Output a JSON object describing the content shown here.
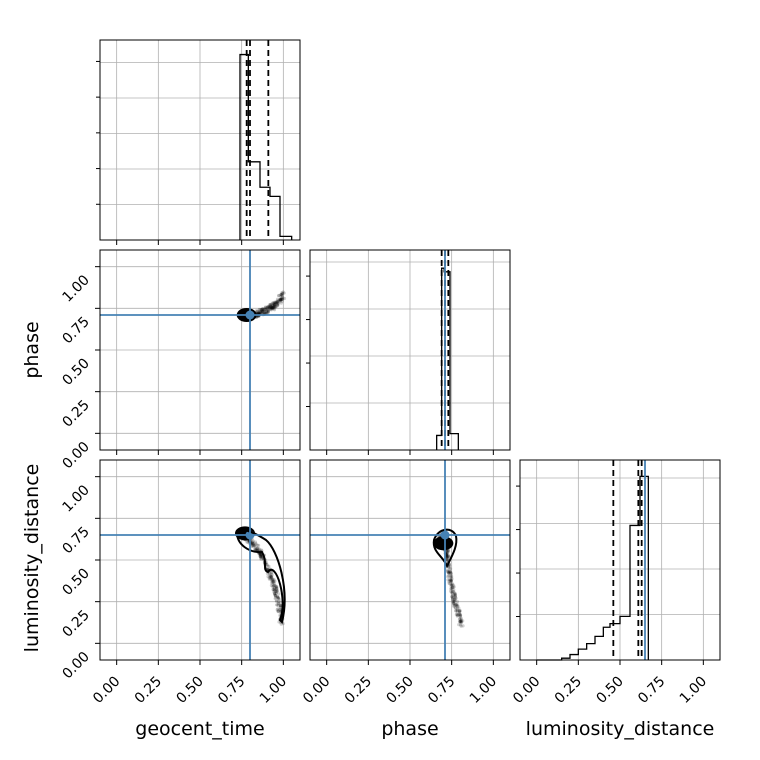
{
  "figure": {
    "type": "corner_plot",
    "parameters": [
      "geocent_time",
      "phase",
      "luminosity_distance"
    ],
    "tick_labels": [
      "0.00",
      "0.25",
      "0.50",
      "0.75",
      "1.00"
    ],
    "axis_range": [
      -0.1,
      1.1
    ],
    "truths": {
      "geocent_time": 0.8,
      "phase": 0.71,
      "luminosity_distance": 0.65
    },
    "truth_color": "#4682b4",
    "grid": true
  },
  "chart_data": [
    {
      "type": "histogram",
      "panel": "geocent_time",
      "xlabel": "geocent_time",
      "bins": [
        {
          "x0": 0.74,
          "x1": 0.79,
          "count": 1.02
        },
        {
          "x0": 0.79,
          "x1": 0.86,
          "count": 0.43
        },
        {
          "x0": 0.86,
          "x1": 0.92,
          "count": 0.29
        },
        {
          "x0": 0.92,
          "x1": 0.98,
          "count": 0.24
        },
        {
          "x0": 0.98,
          "x1": 1.05,
          "count": 0.02
        }
      ],
      "quantiles": [
        0.78,
        0.8,
        0.91
      ]
    },
    {
      "type": "scatter",
      "panel": "phase_vs_geocent_time",
      "x": [
        0.75,
        0.8,
        0.85,
        0.9,
        0.95,
        1.0
      ],
      "y": [
        0.71,
        0.71,
        0.72,
        0.74,
        0.77,
        0.83
      ],
      "truth": [
        0.8,
        0.71
      ]
    },
    {
      "type": "histogram",
      "panel": "phase",
      "bins": [
        {
          "x0": 0.66,
          "x1": 0.69,
          "count": 0.08
        },
        {
          "x0": 0.69,
          "x1": 0.705,
          "count": 1.0
        },
        {
          "x0": 0.705,
          "x1": 0.74,
          "count": 0.98
        },
        {
          "x0": 0.74,
          "x1": 0.79,
          "count": 0.09
        }
      ],
      "quantiles": [
        0.69,
        0.71,
        0.73
      ]
    },
    {
      "type": "scatter",
      "panel": "luminosity_distance_vs_geocent_time",
      "ylabel": "luminosity_distance",
      "x": [
        0.74,
        0.8,
        0.86,
        0.92,
        0.96,
        0.99
      ],
      "y": [
        0.66,
        0.62,
        0.55,
        0.42,
        0.3,
        0.12
      ],
      "truth": [
        0.8,
        0.65
      ]
    },
    {
      "type": "scatter",
      "panel": "luminosity_distance_vs_phase",
      "xlabel": "phase",
      "x": [
        0.67,
        0.7,
        0.72,
        0.74,
        0.77,
        0.81
      ],
      "y": [
        0.6,
        0.65,
        0.55,
        0.4,
        0.25,
        0.11
      ],
      "truth": [
        0.71,
        0.65
      ]
    },
    {
      "type": "histogram",
      "panel": "luminosity_distance",
      "xlabel": "luminosity_distance",
      "bins": [
        {
          "x0": 0.0,
          "x1": 0.15,
          "count": 0.0
        },
        {
          "x0": 0.15,
          "x1": 0.2,
          "count": 0.01
        },
        {
          "x0": 0.2,
          "x1": 0.25,
          "count": 0.03
        },
        {
          "x0": 0.25,
          "x1": 0.3,
          "count": 0.06
        },
        {
          "x0": 0.3,
          "x1": 0.35,
          "count": 0.09
        },
        {
          "x0": 0.35,
          "x1": 0.4,
          "count": 0.13
        },
        {
          "x0": 0.4,
          "x1": 0.44,
          "count": 0.18
        },
        {
          "x0": 0.44,
          "x1": 0.5,
          "count": 0.2
        },
        {
          "x0": 0.5,
          "x1": 0.56,
          "count": 0.24
        },
        {
          "x0": 0.56,
          "x1": 0.62,
          "count": 0.74
        },
        {
          "x0": 0.62,
          "x1": 0.67,
          "count": 1.01
        }
      ],
      "quantiles": [
        0.46,
        0.61,
        0.63
      ]
    }
  ]
}
